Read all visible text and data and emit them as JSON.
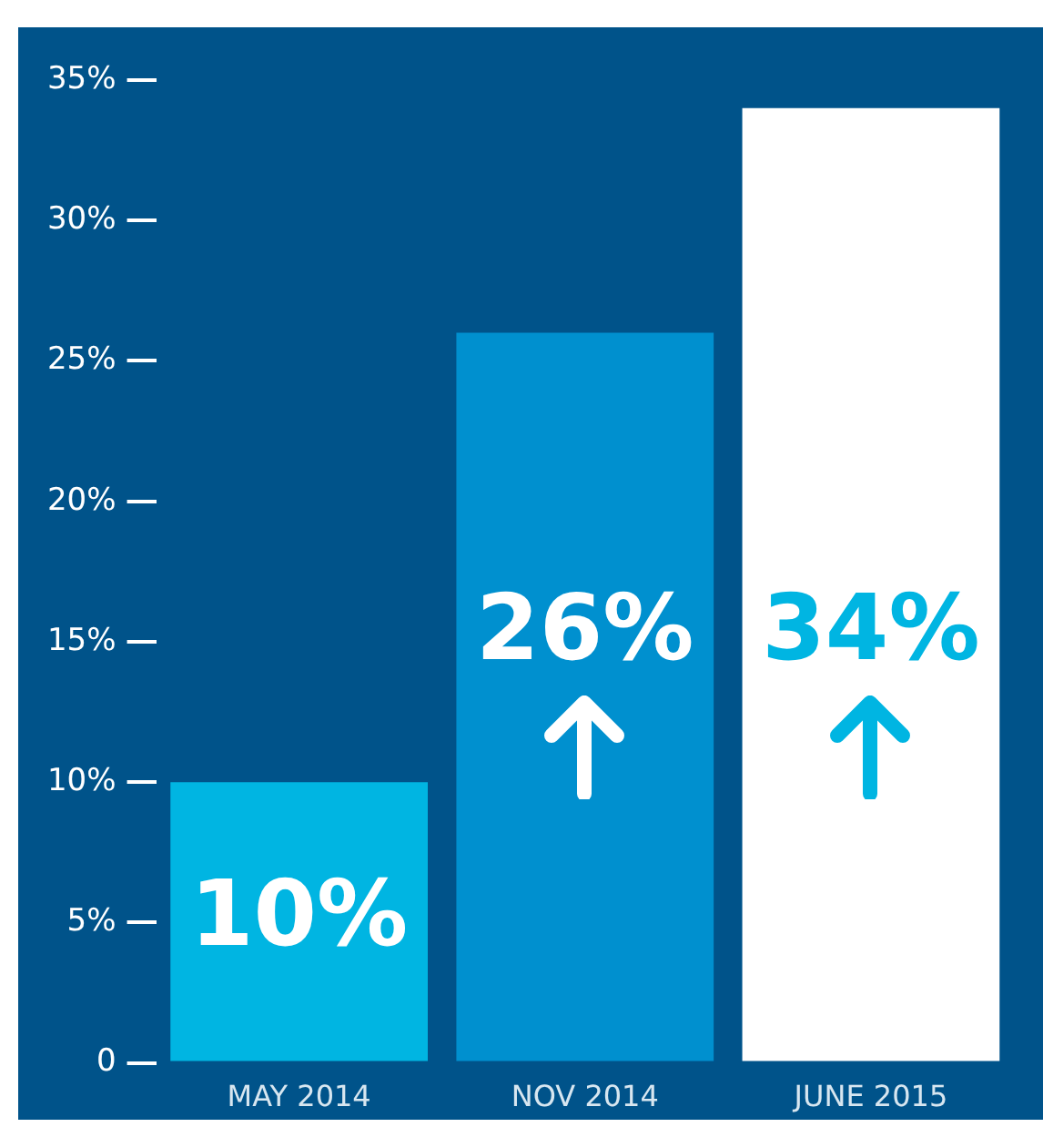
{
  "chart_data": {
    "type": "bar",
    "categories": [
      "MAY 2014",
      "NOV 2014",
      "JUNE 2015"
    ],
    "values": [
      10,
      26,
      34
    ],
    "colors": [
      "#00b5e2",
      "#0090cf",
      "#ffffff"
    ],
    "ylim": [
      0,
      35
    ],
    "yticks": [
      {
        "value": 0,
        "label": "0"
      },
      {
        "value": 5,
        "label": "5%"
      },
      {
        "value": 10,
        "label": "10%"
      },
      {
        "value": 15,
        "label": "15%"
      },
      {
        "value": 20,
        "label": "20%"
      },
      {
        "value": 25,
        "label": "25%"
      },
      {
        "value": 30,
        "label": "30%"
      },
      {
        "value": 35,
        "label": "35%"
      }
    ],
    "value_labels": [
      "10%",
      "26%",
      "34%"
    ],
    "grid": false,
    "legend": false
  }
}
